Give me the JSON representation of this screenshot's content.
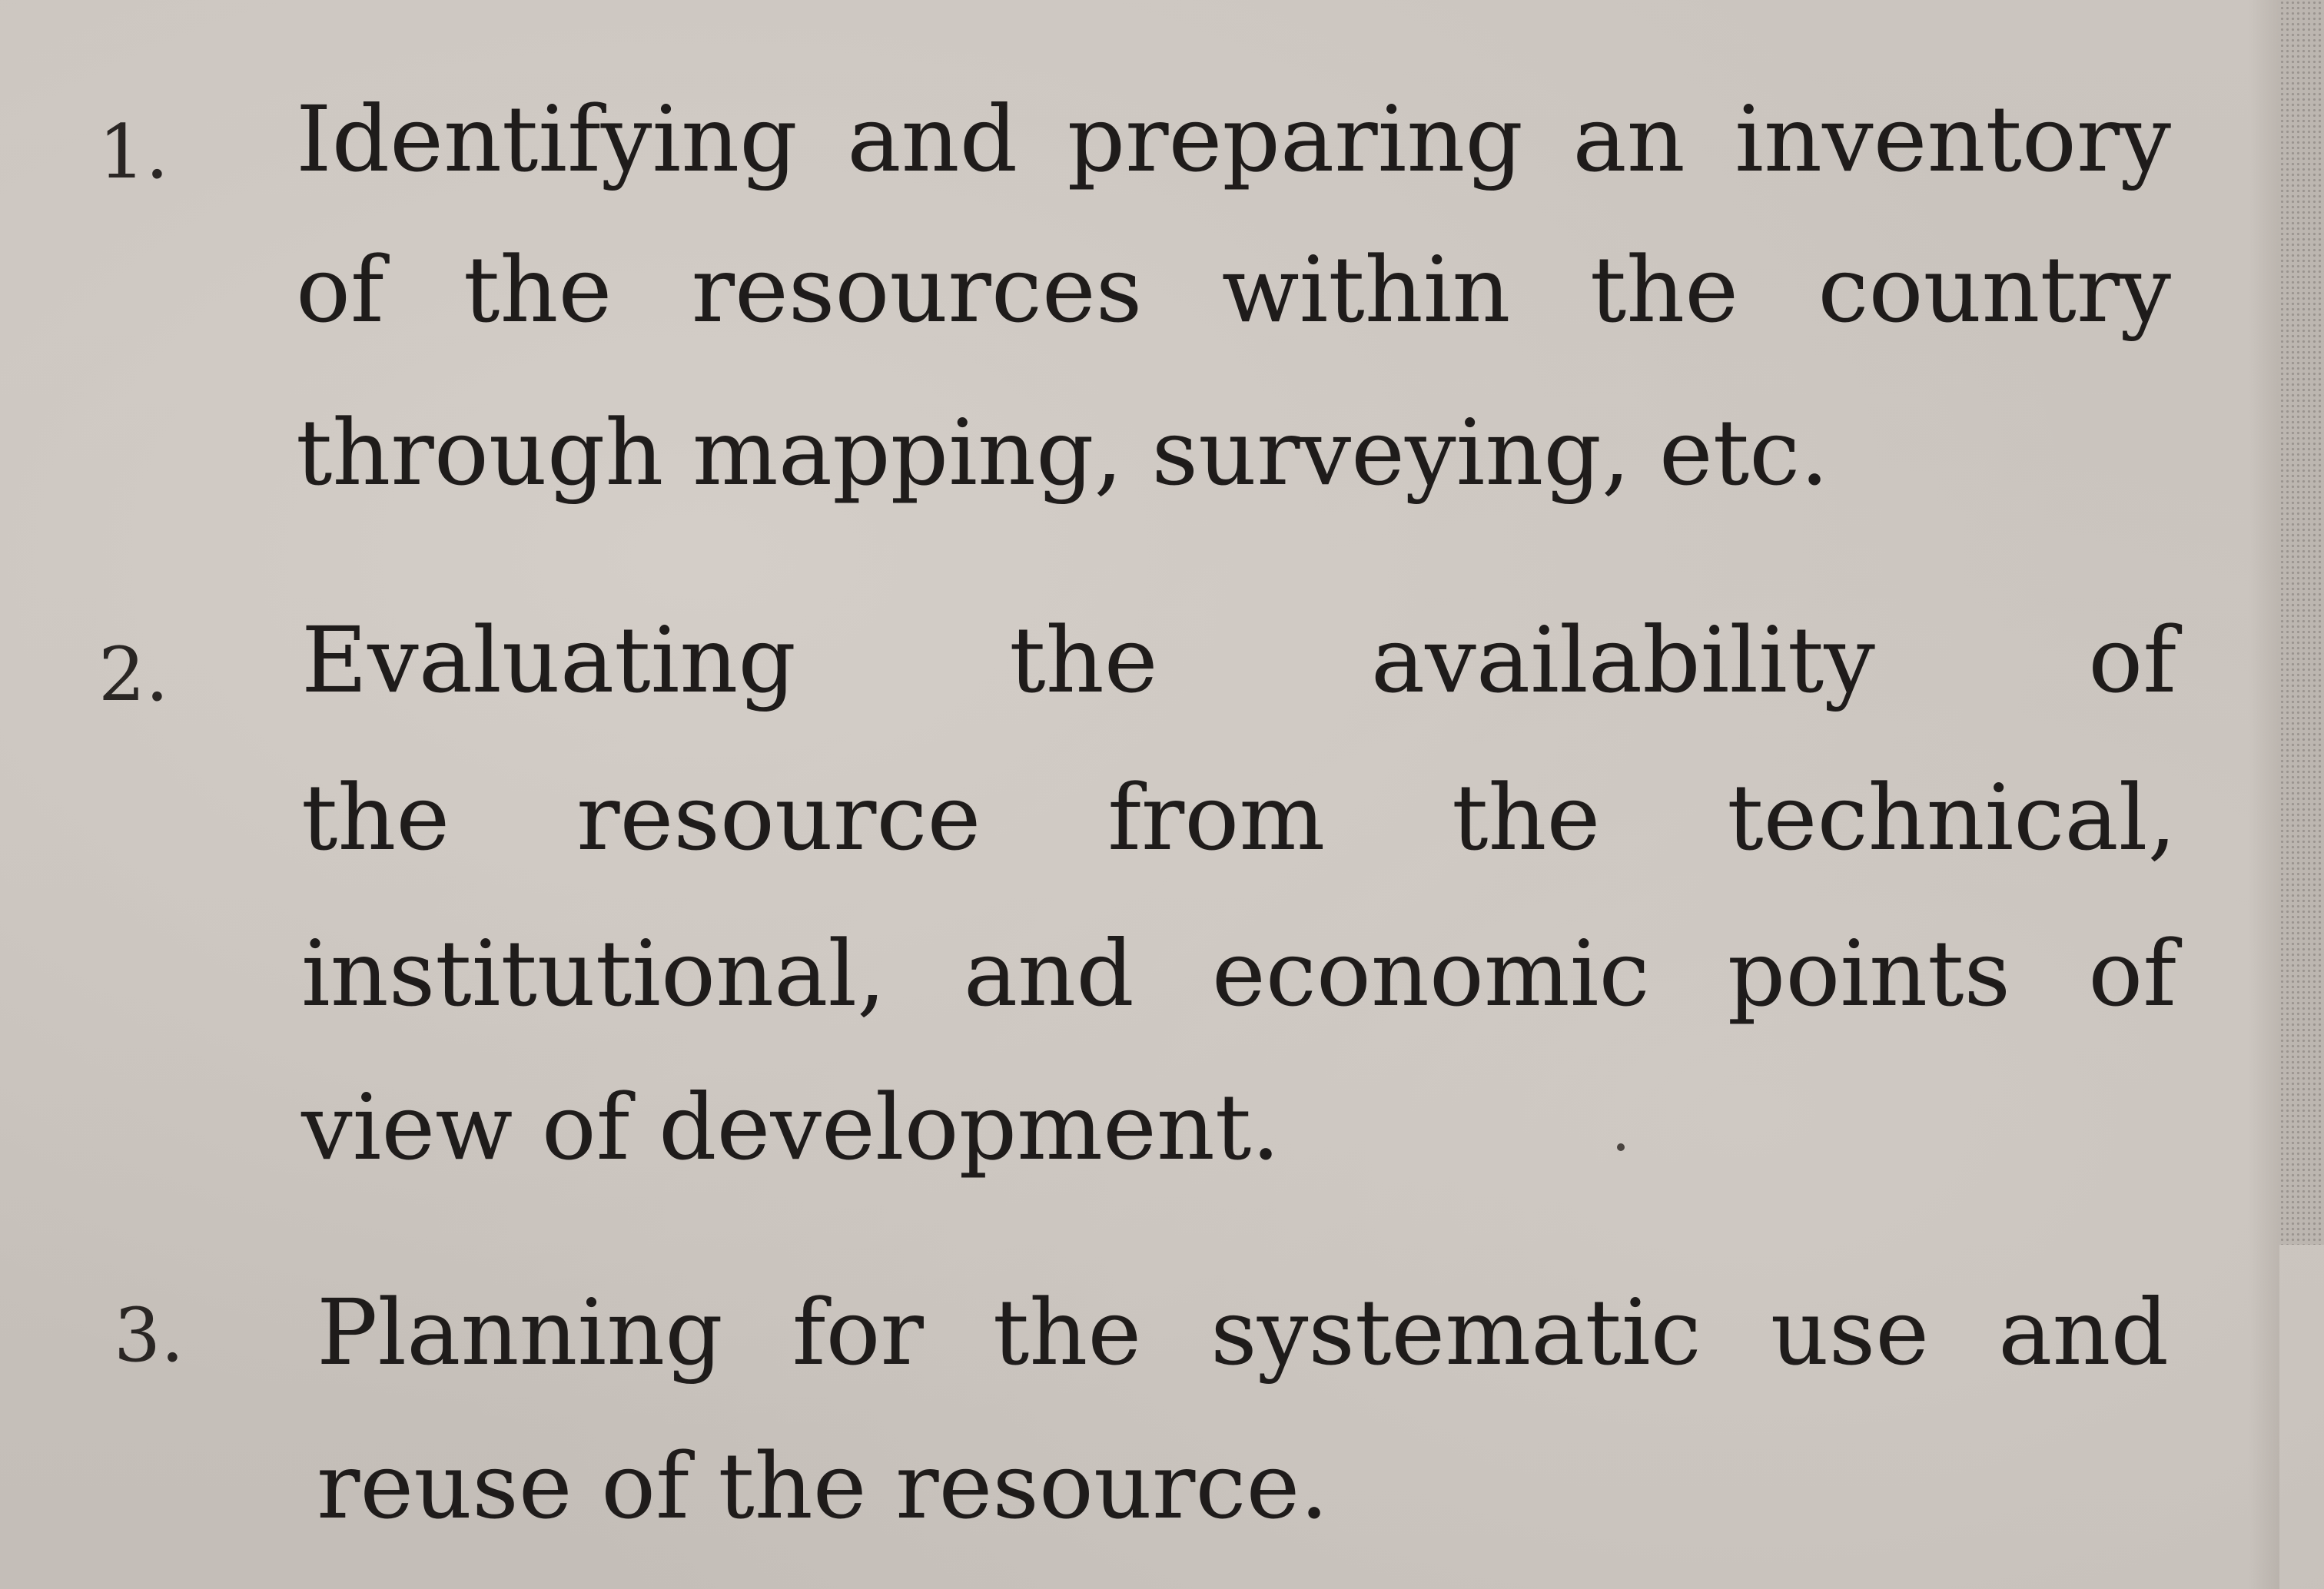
{
  "items": [
    {
      "number": "1.",
      "lines": [
        "Identifying and preparing an inventory",
        "of the resources within the country",
        "through mapping, surveying, etc."
      ]
    },
    {
      "number": "2.",
      "lines": [
        "Evaluating the availability of",
        "the resource from the technical,",
        "institutional, and economic points of",
        "view of development."
      ]
    },
    {
      "number": "3.",
      "lines": [
        "Planning for the systematic use and",
        "reuse of the resource."
      ]
    }
  ]
}
